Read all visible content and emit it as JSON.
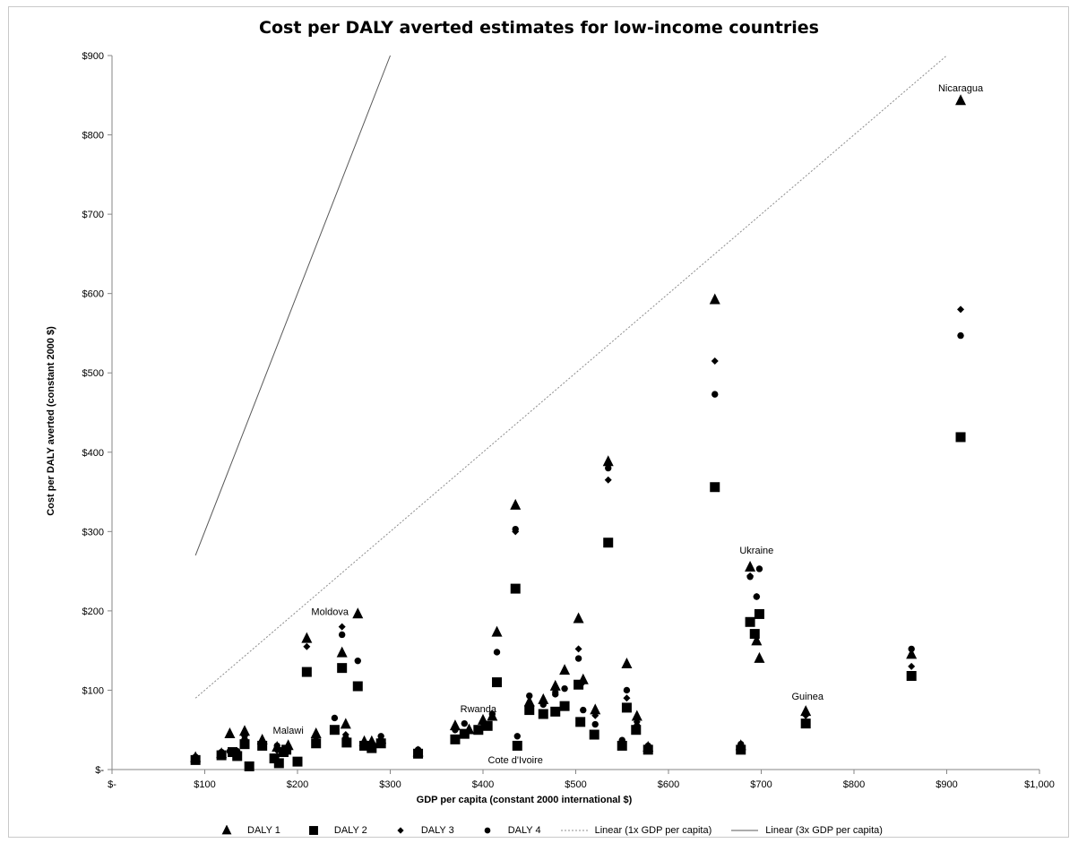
{
  "chart_data": {
    "type": "scatter",
    "title": "Cost per DALY averted estimates for low-income countries",
    "xlabel": "GDP per capita (constant 2000 international $)",
    "ylabel": "Cost per DALY averted (constant 2000 $)",
    "xlim": [
      0,
      1000
    ],
    "ylim": [
      0,
      900
    ],
    "x_ticks": [
      {
        "value": 0,
        "label": "$-"
      },
      {
        "value": 100,
        "label": "$100"
      },
      {
        "value": 200,
        "label": "$200"
      },
      {
        "value": 300,
        "label": "$300"
      },
      {
        "value": 400,
        "label": "$400"
      },
      {
        "value": 500,
        "label": "$500"
      },
      {
        "value": 600,
        "label": "$600"
      },
      {
        "value": 700,
        "label": "$700"
      },
      {
        "value": 800,
        "label": "$800"
      },
      {
        "value": 900,
        "label": "$900"
      },
      {
        "value": 1000,
        "label": "$1,000"
      }
    ],
    "y_ticks": [
      {
        "value": 0,
        "label": "$-"
      },
      {
        "value": 100,
        "label": "$100"
      },
      {
        "value": 200,
        "label": "$200"
      },
      {
        "value": 300,
        "label": "$300"
      },
      {
        "value": 400,
        "label": "$400"
      },
      {
        "value": 500,
        "label": "$500"
      },
      {
        "value": 600,
        "label": "$600"
      },
      {
        "value": 700,
        "label": "$700"
      },
      {
        "value": 800,
        "label": "$800"
      },
      {
        "value": 900,
        "label": "$900"
      }
    ],
    "grid": false,
    "legend_position": "bottom",
    "series": [
      {
        "name": "DALY 1",
        "marker": "triangle",
        "color": "#000000",
        "points": [
          [
            90,
            15
          ],
          [
            118,
            20
          ],
          [
            127,
            45
          ],
          [
            143,
            48
          ],
          [
            162,
            37
          ],
          [
            178,
            28
          ],
          [
            190,
            30
          ],
          [
            210,
            165
          ],
          [
            220,
            45
          ],
          [
            248,
            147
          ],
          [
            252,
            57
          ],
          [
            265,
            196
          ],
          [
            272,
            35
          ],
          [
            280,
            35
          ],
          [
            290,
            38
          ],
          [
            330,
            22
          ],
          [
            370,
            55
          ],
          [
            385,
            50
          ],
          [
            400,
            62
          ],
          [
            410,
            67
          ],
          [
            415,
            173
          ],
          [
            435,
            333
          ],
          [
            450,
            85
          ],
          [
            465,
            88
          ],
          [
            478,
            105
          ],
          [
            488,
            125
          ],
          [
            503,
            190
          ],
          [
            508,
            113
          ],
          [
            521,
            75
          ],
          [
            535,
            388
          ],
          [
            555,
            133
          ],
          [
            566,
            67
          ],
          [
            578,
            28
          ],
          [
            650,
            592
          ],
          [
            678,
            30
          ],
          [
            688,
            255
          ],
          [
            695,
            162
          ],
          [
            698,
            140
          ],
          [
            748,
            73
          ],
          [
            862,
            145
          ],
          [
            915,
            843
          ]
        ]
      },
      {
        "name": "DALY 2",
        "marker": "square",
        "color": "#000000",
        "points": [
          [
            90,
            12
          ],
          [
            118,
            18
          ],
          [
            130,
            22
          ],
          [
            135,
            17
          ],
          [
            143,
            32
          ],
          [
            148,
            4
          ],
          [
            162,
            30
          ],
          [
            175,
            14
          ],
          [
            180,
            8
          ],
          [
            185,
            22
          ],
          [
            188,
            25
          ],
          [
            200,
            10
          ],
          [
            210,
            123
          ],
          [
            220,
            33
          ],
          [
            240,
            50
          ],
          [
            248,
            128
          ],
          [
            253,
            34
          ],
          [
            265,
            105
          ],
          [
            272,
            30
          ],
          [
            280,
            27
          ],
          [
            290,
            33
          ],
          [
            330,
            20
          ],
          [
            370,
            38
          ],
          [
            380,
            45
          ],
          [
            395,
            50
          ],
          [
            405,
            55
          ],
          [
            415,
            110
          ],
          [
            435,
            228
          ],
          [
            437,
            30
          ],
          [
            450,
            75
          ],
          [
            465,
            70
          ],
          [
            478,
            73
          ],
          [
            488,
            80
          ],
          [
            503,
            107
          ],
          [
            505,
            60
          ],
          [
            520,
            44
          ],
          [
            535,
            286
          ],
          [
            550,
            30
          ],
          [
            555,
            78
          ],
          [
            565,
            50
          ],
          [
            578,
            25
          ],
          [
            650,
            356
          ],
          [
            678,
            25
          ],
          [
            688,
            186
          ],
          [
            693,
            171
          ],
          [
            698,
            196
          ],
          [
            748,
            58
          ],
          [
            862,
            118
          ],
          [
            915,
            419
          ]
        ]
      },
      {
        "name": "DALY 3",
        "marker": "diamond",
        "color": "#000000",
        "points": [
          [
            118,
            20
          ],
          [
            143,
            42
          ],
          [
            162,
            33
          ],
          [
            178,
            24
          ],
          [
            210,
            155
          ],
          [
            220,
            38
          ],
          [
            248,
            180
          ],
          [
            252,
            44
          ],
          [
            272,
            34
          ],
          [
            280,
            32
          ],
          [
            370,
            50
          ],
          [
            400,
            58
          ],
          [
            415,
            172
          ],
          [
            435,
            300
          ],
          [
            450,
            80
          ],
          [
            478,
            98
          ],
          [
            503,
            152
          ],
          [
            508,
            110
          ],
          [
            521,
            68
          ],
          [
            535,
            365
          ],
          [
            555,
            90
          ],
          [
            566,
            60
          ],
          [
            650,
            515
          ],
          [
            688,
            244
          ],
          [
            695,
            218
          ],
          [
            748,
            68
          ],
          [
            862,
            130
          ],
          [
            915,
            580
          ]
        ]
      },
      {
        "name": "DALY 4",
        "marker": "circle",
        "color": "#000000",
        "points": [
          [
            90,
            16
          ],
          [
            118,
            22
          ],
          [
            127,
            23
          ],
          [
            135,
            23
          ],
          [
            143,
            38
          ],
          [
            162,
            32
          ],
          [
            178,
            30
          ],
          [
            190,
            28
          ],
          [
            240,
            65
          ],
          [
            248,
            170
          ],
          [
            252,
            40
          ],
          [
            265,
            137
          ],
          [
            272,
            33
          ],
          [
            280,
            30
          ],
          [
            290,
            42
          ],
          [
            330,
            25
          ],
          [
            370,
            50
          ],
          [
            380,
            58
          ],
          [
            400,
            60
          ],
          [
            410,
            70
          ],
          [
            415,
            148
          ],
          [
            435,
            303
          ],
          [
            437,
            42
          ],
          [
            450,
            93
          ],
          [
            465,
            82
          ],
          [
            478,
            95
          ],
          [
            488,
            102
          ],
          [
            503,
            140
          ],
          [
            508,
            75
          ],
          [
            521,
            57
          ],
          [
            535,
            380
          ],
          [
            550,
            37
          ],
          [
            555,
            100
          ],
          [
            566,
            55
          ],
          [
            578,
            30
          ],
          [
            650,
            473
          ],
          [
            678,
            32
          ],
          [
            688,
            243
          ],
          [
            695,
            218
          ],
          [
            698,
            253
          ],
          [
            862,
            152
          ],
          [
            915,
            547
          ]
        ]
      },
      {
        "name": "Linear (1x GDP per capita)",
        "marker": "dotted-line",
        "color": "#8c8c8c",
        "points": [
          [
            90,
            90
          ],
          [
            900,
            900
          ]
        ]
      },
      {
        "name": "Linear (3x GDP per capita)",
        "marker": "solid-line",
        "color": "#595959",
        "points": [
          [
            90,
            270
          ],
          [
            300,
            900
          ]
        ]
      }
    ],
    "annotations": [
      {
        "text": "Nicaragua",
        "x": 915,
        "y": 855
      },
      {
        "text": "Moldova",
        "x": 235,
        "y": 195
      },
      {
        "text": "Malawi",
        "x": 190,
        "y": 45
      },
      {
        "text": "Rwanda",
        "x": 395,
        "y": 72
      },
      {
        "text": "Cote d'Ivoire",
        "x": 435,
        "y": 8
      },
      {
        "text": "Ukraine",
        "x": 695,
        "y": 272
      },
      {
        "text": "Guinea",
        "x": 750,
        "y": 88
      }
    ]
  }
}
